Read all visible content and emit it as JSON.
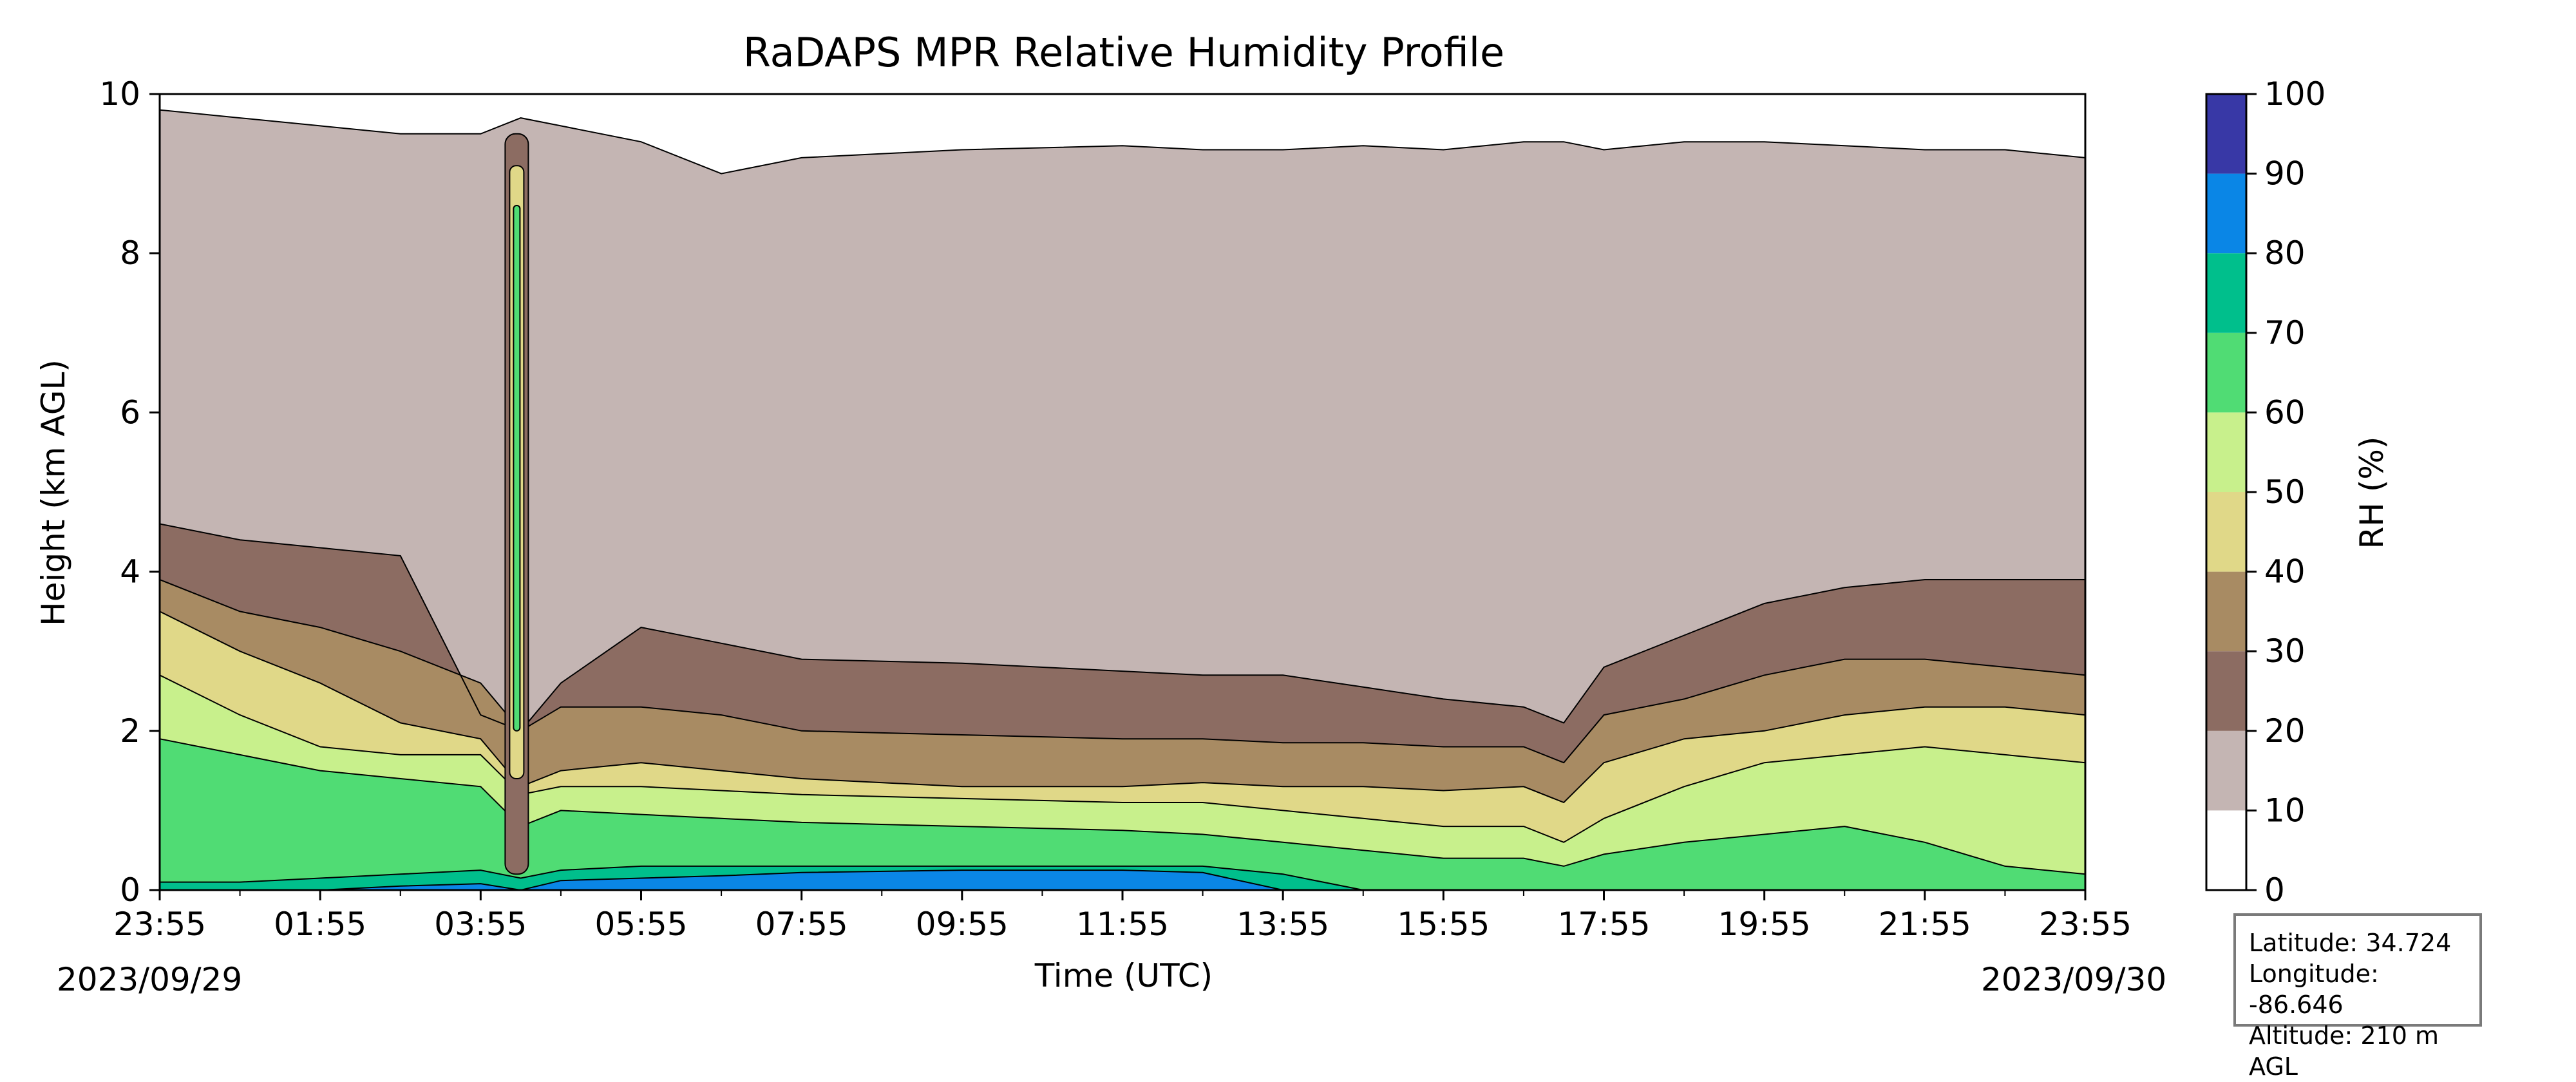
{
  "chart_data": {
    "type": "heatmap",
    "title": "RaDAPS MPR Relative Humidity Profile",
    "xlabel": "Time (UTC)",
    "ylabel": "Height (km AGL)",
    "x_tick_labels": [
      "23:55",
      "01:55",
      "03:55",
      "05:55",
      "07:55",
      "09:55",
      "11:55",
      "13:55",
      "15:55",
      "17:55",
      "19:55",
      "21:55",
      "23:55"
    ],
    "x_tick_hours": [
      0,
      2,
      4,
      6,
      8,
      10,
      12,
      14,
      16,
      18,
      20,
      22,
      24
    ],
    "xlim_hours": [
      0,
      24
    ],
    "start_date": "2023/09/29",
    "end_date": "2023/09/30",
    "y_ticks": [
      0,
      2,
      4,
      6,
      8,
      10
    ],
    "ylim": [
      0,
      10
    ],
    "colorbar": {
      "label": "RH (%)",
      "ticks": [
        0,
        10,
        20,
        30,
        40,
        50,
        60,
        70,
        80,
        90,
        100
      ],
      "levels": [
        0,
        10,
        20,
        30,
        40,
        50,
        60,
        70,
        80,
        90,
        100
      ],
      "colors": [
        "#ffffff",
        "#c4b5b3",
        "#8c6c62",
        "#a88b63",
        "#e0d888",
        "#c8f08c",
        "#50dc74",
        "#00bf8c",
        "#0a86e6",
        "#3838a6"
      ]
    },
    "layer_boundaries_km": {
      "hours": [
        0,
        1,
        2,
        3,
        4,
        4.5,
        5,
        6,
        7,
        8,
        10,
        12,
        13,
        14,
        15,
        16,
        17,
        17.5,
        18,
        19,
        20,
        21,
        22,
        23,
        24
      ],
      "rh20": [
        4.6,
        4.4,
        4.3,
        4.2,
        2.2,
        2.0,
        2.6,
        3.3,
        3.1,
        2.9,
        2.85,
        2.75,
        2.7,
        2.7,
        2.55,
        2.4,
        2.3,
        2.1,
        2.8,
        3.2,
        3.6,
        3.8,
        3.9,
        3.9,
        3.9
      ],
      "rh30": [
        3.9,
        3.5,
        3.3,
        3.0,
        2.6,
        2.0,
        2.3,
        2.3,
        2.2,
        2.0,
        1.95,
        1.9,
        1.9,
        1.85,
        1.85,
        1.8,
        1.8,
        1.6,
        2.2,
        2.4,
        2.7,
        2.9,
        2.9,
        2.8,
        2.7
      ],
      "rh40": [
        3.5,
        3.0,
        2.6,
        2.1,
        1.9,
        1.3,
        1.5,
        1.6,
        1.5,
        1.4,
        1.3,
        1.3,
        1.35,
        1.3,
        1.3,
        1.25,
        1.3,
        1.1,
        1.6,
        1.9,
        2.0,
        2.2,
        2.3,
        2.3,
        2.2
      ],
      "rh50": [
        2.7,
        2.2,
        1.8,
        1.7,
        1.7,
        1.2,
        1.3,
        1.3,
        1.25,
        1.2,
        1.15,
        1.1,
        1.1,
        1.0,
        0.9,
        0.8,
        0.8,
        0.6,
        0.9,
        1.3,
        1.6,
        1.7,
        1.8,
        1.7,
        1.6
      ],
      "rh60": [
        1.9,
        1.7,
        1.5,
        1.4,
        1.3,
        0.8,
        1.0,
        0.95,
        0.9,
        0.85,
        0.8,
        0.75,
        0.7,
        0.6,
        0.5,
        0.4,
        0.4,
        0.3,
        0.45,
        0.6,
        0.7,
        0.8,
        0.6,
        0.3,
        0.2
      ],
      "rh70": [
        0.1,
        0.1,
        0.15,
        0.2,
        0.25,
        0.15,
        0.25,
        0.3,
        0.3,
        0.3,
        0.3,
        0.3,
        0.3,
        0.2,
        0.0,
        0.0,
        0.0,
        0.0,
        0.0,
        0.0,
        0.0,
        0.0,
        0.0,
        0.0,
        0.0
      ],
      "rh80": [
        0.0,
        0.0,
        0.0,
        0.05,
        0.08,
        0.0,
        0.12,
        0.15,
        0.18,
        0.22,
        0.25,
        0.25,
        0.22,
        0.0,
        0.0,
        0.0,
        0.0,
        0.0,
        0.0,
        0.0,
        0.0,
        0.0,
        0.0,
        0.0,
        0.0
      ],
      "rh10": [
        9.8,
        9.7,
        9.6,
        9.5,
        9.5,
        9.7,
        9.6,
        9.4,
        9.0,
        9.2,
        9.3,
        9.35,
        9.3,
        9.3,
        9.35,
        9.3,
        9.4,
        9.4,
        9.3,
        9.4,
        9.4,
        9.35,
        9.3,
        9.3,
        9.2
      ]
    }
  },
  "info": {
    "latitude": "Latitude: 34.724",
    "longitude": "Longitude: -86.646",
    "altitude": "Altitude: 210 m AGL"
  }
}
